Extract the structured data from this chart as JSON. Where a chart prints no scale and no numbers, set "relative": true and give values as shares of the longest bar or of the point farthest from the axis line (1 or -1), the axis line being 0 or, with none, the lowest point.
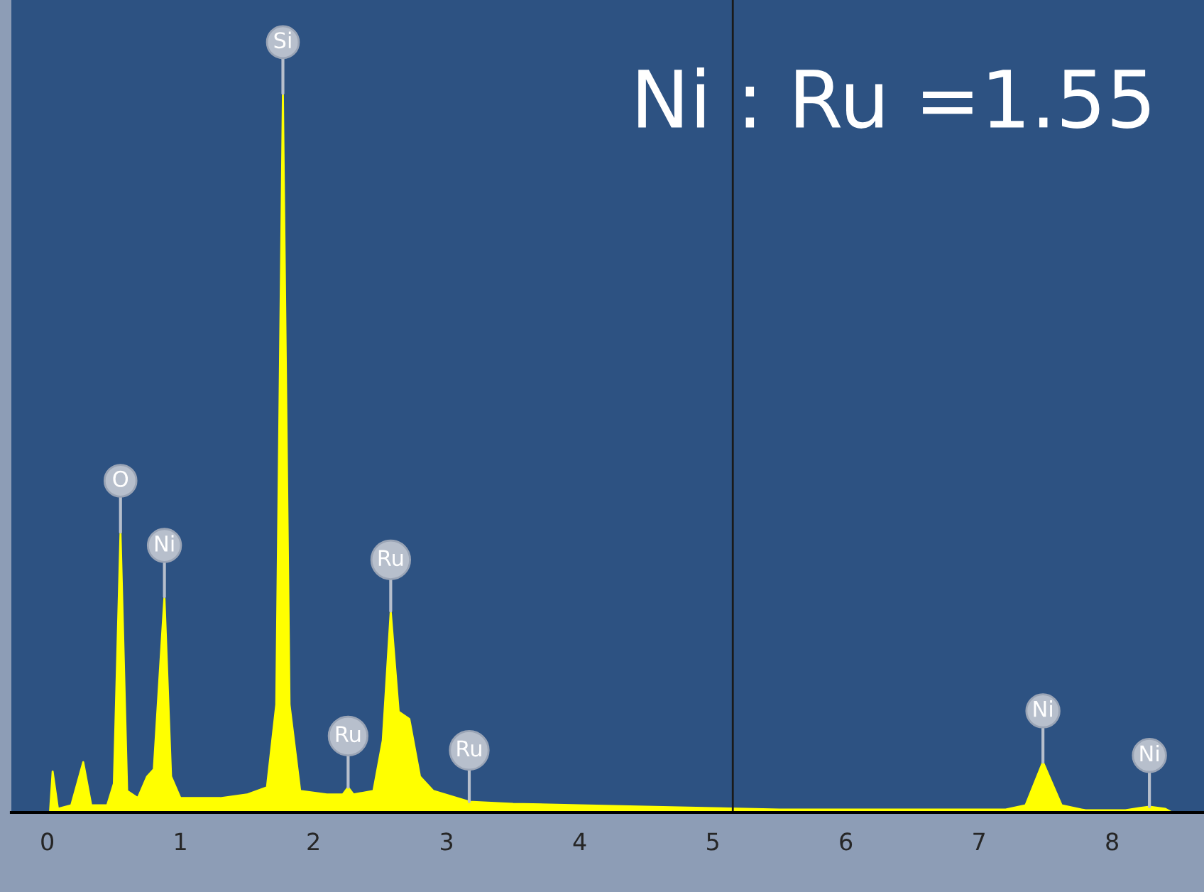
{
  "chart_data": {
    "type": "area",
    "relative": true,
    "x": [
      -0.02,
      0.02,
      0.04,
      0.08,
      0.18,
      0.27,
      0.33,
      0.45,
      0.5,
      0.55,
      0.6,
      0.68,
      0.75,
      0.8,
      0.88,
      0.93,
      1.0,
      1.3,
      1.5,
      1.65,
      1.72,
      1.77,
      1.82,
      1.9,
      2.1,
      2.22,
      2.26,
      2.3,
      2.45,
      2.52,
      2.58,
      2.64,
      2.72,
      2.8,
      2.9,
      3.17,
      3.5,
      4.0,
      4.5,
      5.0,
      5.5,
      6.5,
      7.2,
      7.35,
      7.48,
      7.62,
      7.8,
      8.1,
      8.2,
      8.28,
      8.4,
      8.45
    ],
    "series": [
      {
        "color": "#ffff00",
        "values": [
          0,
          0,
          0.057,
          0.005,
          0.01,
          0.07,
          0.01,
          0.01,
          0.04,
          0.39,
          0.03,
          0.02,
          0.05,
          0.06,
          0.3,
          0.05,
          0.02,
          0.02,
          0.025,
          0.035,
          0.15,
          1.0,
          0.15,
          0.03,
          0.025,
          0.025,
          0.035,
          0.025,
          0.03,
          0.1,
          0.28,
          0.14,
          0.13,
          0.05,
          0.03,
          0.015,
          0.012,
          0.01,
          0.008,
          0.006,
          0.004,
          0.004,
          0.004,
          0.01,
          0.07,
          0.01,
          0.003,
          0.003,
          0.006,
          0.008,
          0.005,
          0
        ]
      }
    ],
    "xlim": [
      -0.27,
      8.69
    ],
    "xticks": [
      0,
      1,
      2,
      3,
      4,
      5,
      6,
      7,
      8
    ],
    "ref_lines": [
      {
        "axis": "x",
        "value": 5.15,
        "color": "#1a1a1a"
      }
    ],
    "annotations": [
      "Ni : Ru =1.55",
      {
        "text": "O",
        "x": 0.55,
        "y": 0.39
      },
      {
        "text": "Ni",
        "x": 0.88,
        "y": 0.3
      },
      {
        "text": "Si",
        "x": 1.77,
        "y": 1.0
      },
      {
        "text": "Ru",
        "x": 2.26,
        "y": 0.035
      },
      {
        "text": "Ru",
        "x": 2.58,
        "y": 0.28
      },
      {
        "text": "Ru",
        "x": 3.17,
        "y": 0.015
      },
      {
        "text": "Ni",
        "x": 7.48,
        "y": 0.07
      },
      {
        "text": "Ni",
        "x": 8.28,
        "y": 0.008
      }
    ],
    "grid": false,
    "legend": false,
    "marker": "none"
  }
}
